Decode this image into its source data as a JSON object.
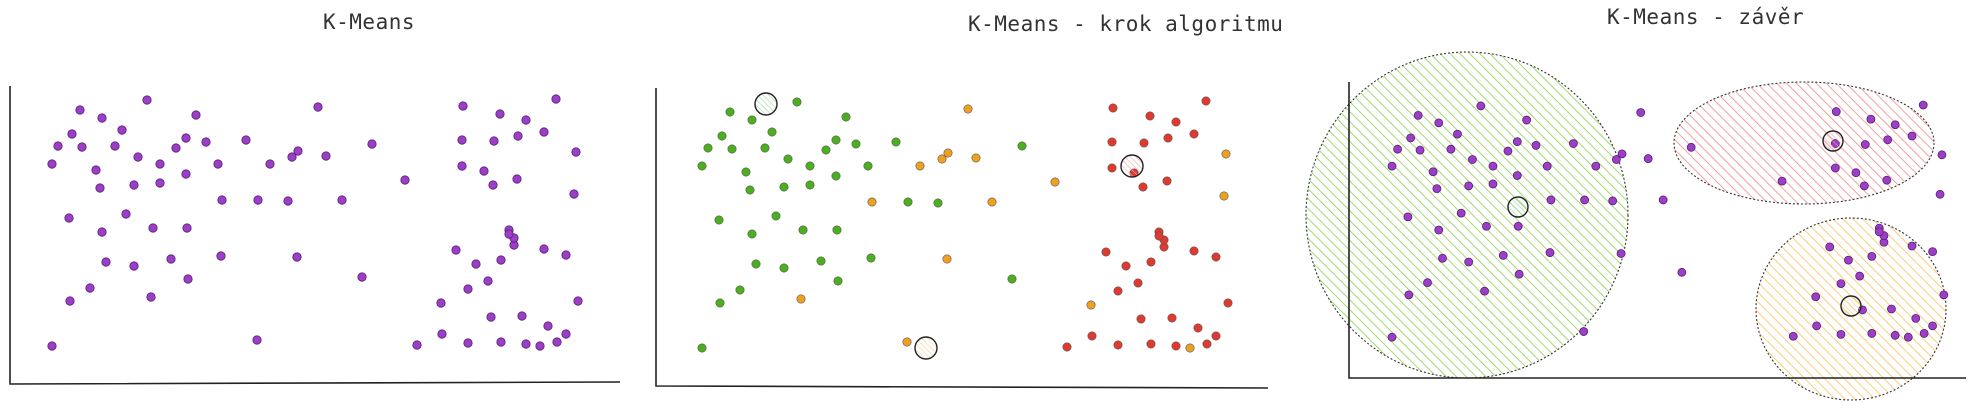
{
  "panels": [
    {
      "title": "K-Means"
    },
    {
      "title": "K-Means - krok algoritmu"
    },
    {
      "title": "K-Means - závěr"
    }
  ],
  "colors": {
    "point_purple": "#9b3fc6",
    "point_green": "#4caf1f",
    "point_orange": "#f0a020",
    "point_red": "#e03a30",
    "centroid_green_fill": "#c8ecd0",
    "centroid_red_fill": "#f5c6c6",
    "centroid_orange_fill": "#fbe2b8",
    "cluster_green": "#8cd04a",
    "cluster_red": "#f08a8a",
    "cluster_orange": "#f8c45a",
    "axis": "#222222"
  },
  "icons": {
    "data_point": "filled-circle",
    "centroid": "outlined-circle"
  }
}
